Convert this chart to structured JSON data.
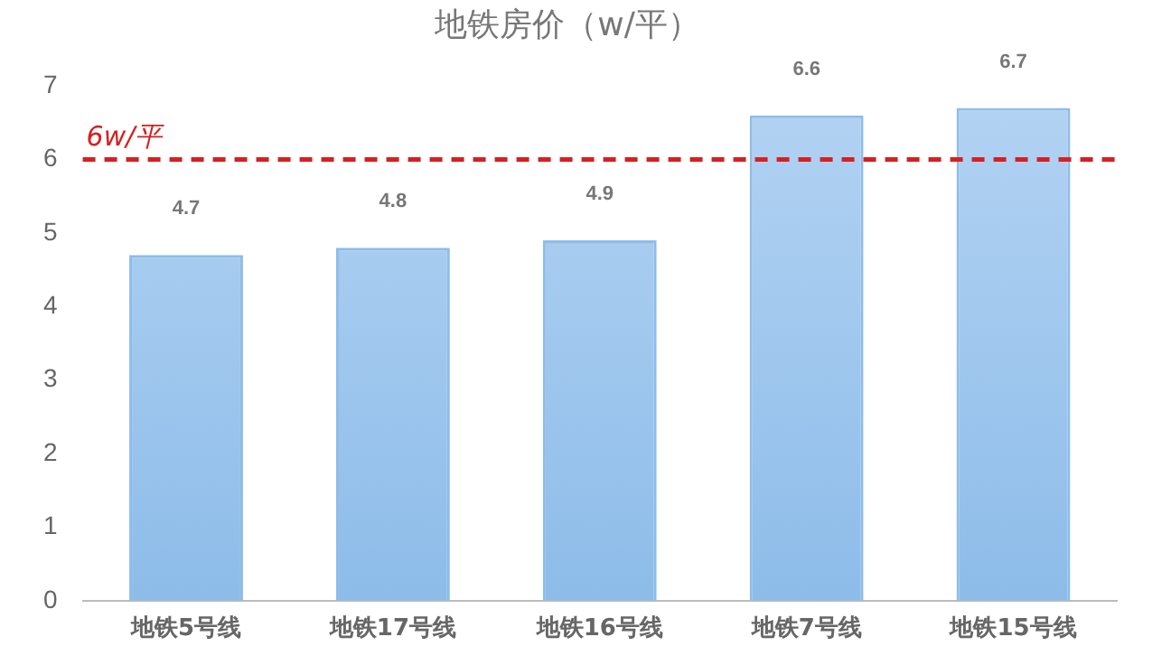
{
  "chart_data": {
    "type": "bar",
    "title": "地铁房价（w/平）",
    "categories": [
      "地铁5号线",
      "地铁17号线",
      "地铁16号线",
      "地铁7号线",
      "地铁15号线"
    ],
    "values": [
      4.7,
      4.8,
      4.9,
      6.6,
      6.7
    ],
    "color": "#8dbce9",
    "ylim": [
      0,
      7
    ],
    "yticks": [
      0,
      1,
      2,
      3,
      4,
      5,
      6,
      7
    ],
    "grid": false,
    "data_labels": true,
    "ref_lines": [
      {
        "axis": "y",
        "value": 6,
        "label": "6w/平",
        "color": "#d62020",
        "line_style": "dashed"
      }
    ]
  }
}
